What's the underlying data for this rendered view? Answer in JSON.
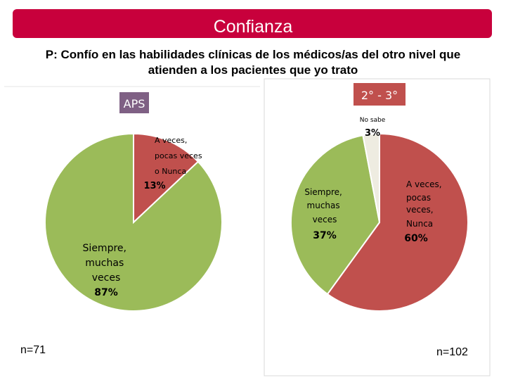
{
  "header": {
    "title": "Confianza",
    "question": "P: Confío en las habilidades clínicas de los médicos/as del otro nivel que atienden a los pacientes que yo trato"
  },
  "chart_data": [
    {
      "type": "pie",
      "title": "APS",
      "n_label": "n=71",
      "slices": [
        {
          "label": "A veces, pocas veces o Nunca",
          "value": 13,
          "value_label": "13%",
          "color": "#c0504d"
        },
        {
          "label": "Siempre, muchas veces",
          "value": 87,
          "value_label": "87%",
          "color": "#9bbb59"
        }
      ]
    },
    {
      "type": "pie",
      "title": "2° - 3°",
      "n_label": "n=102",
      "slices": [
        {
          "label": "A veces, pocas veces, Nunca",
          "value": 60,
          "value_label": "60%",
          "color": "#c0504d"
        },
        {
          "label": "Siempre, muchas veces",
          "value": 37,
          "value_label": "37%",
          "color": "#9bbb59"
        },
        {
          "label": "No sabe",
          "value": 3,
          "value_label": "3%",
          "color": "#eeece1"
        }
      ]
    }
  ]
}
